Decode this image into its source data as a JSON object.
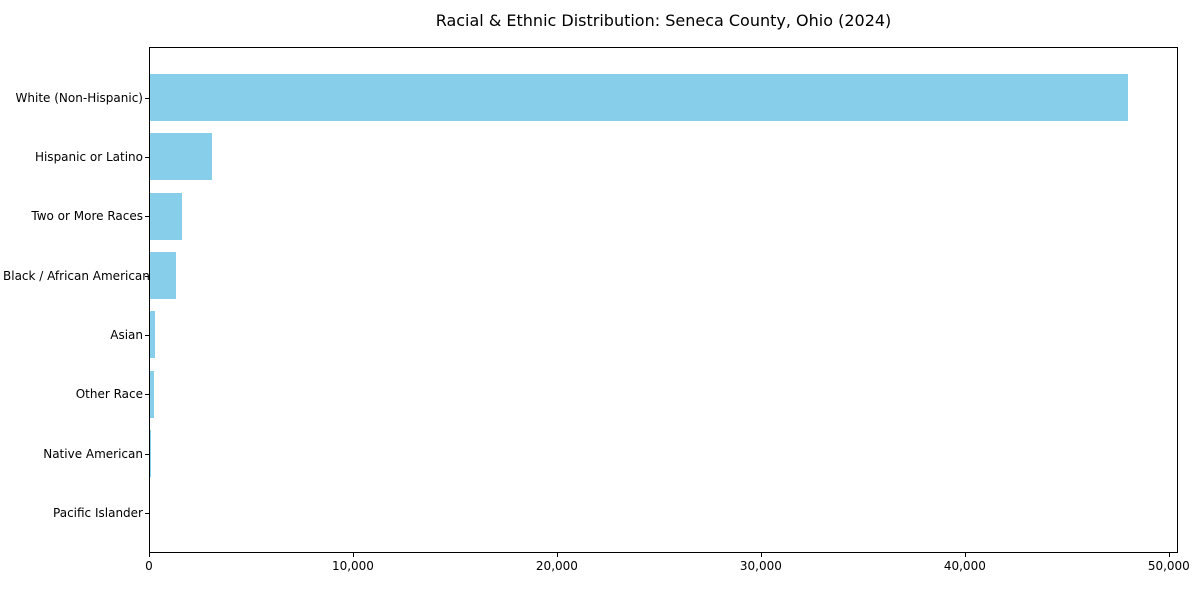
{
  "chart_data": {
    "type": "bar",
    "orientation": "horizontal",
    "title": "Racial & Ethnic Distribution: Seneca County, Ohio (2024)",
    "categories": [
      "White (Non-Hispanic)",
      "Hispanic or Latino",
      "Two or More Races",
      "Black / African American",
      "Asian",
      "Other Race",
      "Native American",
      "Pacific Islander"
    ],
    "values": [
      48000,
      3100,
      1600,
      1300,
      300,
      250,
      60,
      20
    ],
    "xlabel": "",
    "ylabel": "",
    "xlim": [
      0,
      50450
    ],
    "xticks": [
      0,
      10000,
      20000,
      30000,
      40000,
      50000
    ],
    "xtick_labels": [
      "0",
      "10,000",
      "20,000",
      "30,000",
      "40,000",
      "50,000"
    ],
    "bar_color": "#87CEEB",
    "axis_color": "#000000",
    "text_color": "#000000",
    "background_color": "#ffffff",
    "grid": false,
    "legend": null
  }
}
